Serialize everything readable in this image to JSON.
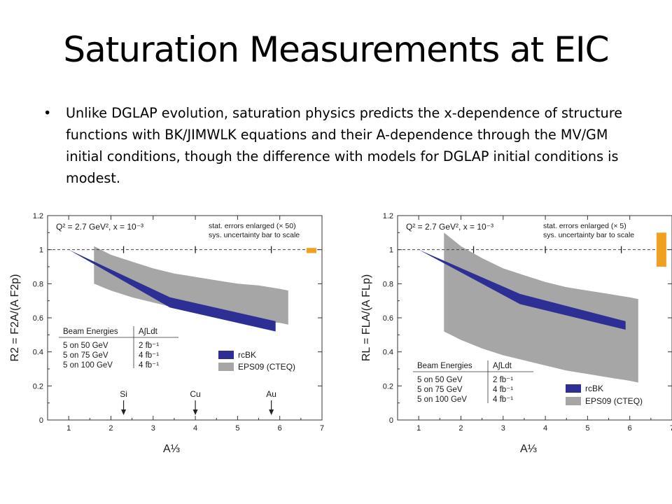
{
  "slide": {
    "title": "Saturation Measurements at EIC",
    "bullet": "Unlike DGLAP evolution, saturation physics predicts the x-dependence of structure functions with BK/JIMWLK equations and their A-dependence through the MV/GM initial conditions, though the difference with models for DGLAP initial conditions is modest."
  },
  "colors": {
    "rcBK": "#2e2f95",
    "eps09": "#a6a6a6",
    "sys_bar": "#f0a020"
  },
  "chart_data": [
    {
      "type": "area",
      "ylabel": "R2 = F2A/(A F2p)",
      "xlabel": "A⅓",
      "xlim": [
        0.5,
        7
      ],
      "ylim": [
        0,
        1.2
      ],
      "x_ticks": [
        "1",
        "2",
        "3",
        "4",
        "5",
        "6",
        "7"
      ],
      "y_ticks": [
        "0",
        "0.2",
        "0.4",
        "0.6",
        "0.8",
        "1",
        "1.2"
      ],
      "kinematics": "Q² = 2.7 GeV², x = 10⁻³",
      "note_1": "stat. errors enlarged (× 50)",
      "note_2": "sys. uncertainty bar to scale",
      "reference_line_y": 1,
      "tick_markers_x": [
        2.3,
        4.0,
        5.8
      ],
      "series": [
        {
          "name": "EPS09 (CTEQ)",
          "kind": "band",
          "x": [
            1.6,
            2.0,
            2.5,
            3.0,
            3.5,
            4.0,
            4.5,
            5.0,
            5.5,
            6.0,
            6.2
          ],
          "upper": [
            1.02,
            0.97,
            0.93,
            0.89,
            0.86,
            0.84,
            0.82,
            0.8,
            0.79,
            0.77,
            0.76
          ],
          "lower": [
            0.8,
            0.76,
            0.72,
            0.69,
            0.66,
            0.63,
            0.61,
            0.59,
            0.58,
            0.57,
            0.56
          ]
        },
        {
          "name": "rcBK",
          "kind": "band",
          "x": [
            1.0,
            3.4,
            5.9
          ],
          "upper": [
            1.0,
            0.72,
            0.58
          ],
          "lower": [
            1.0,
            0.66,
            0.52
          ]
        }
      ],
      "sys_bar": {
        "x": 6.75,
        "low": 0.98,
        "high": 1.01
      },
      "element_markers": [
        {
          "label": "Si",
          "x": 2.3
        },
        {
          "label": "Cu",
          "x": 4.0
        },
        {
          "label": "Au",
          "x": 5.8
        }
      ],
      "luminosity_table": {
        "headers": [
          "Beam Energies",
          "A∫Ldt"
        ],
        "rows": [
          [
            "5 on 50 GeV",
            "2 fb⁻¹"
          ],
          [
            "5 on 75 GeV",
            "4 fb⁻¹"
          ],
          [
            "5 on 100 GeV",
            "4 fb⁻¹"
          ]
        ]
      }
    },
    {
      "type": "area",
      "ylabel": "RL = FLA/(A FLp)",
      "xlabel": "A⅓",
      "xlim": [
        0.5,
        7
      ],
      "ylim": [
        0,
        1.2
      ],
      "x_ticks": [
        "1",
        "2",
        "3",
        "4",
        "5",
        "6",
        "7"
      ],
      "y_ticks": [
        "0",
        "0.2",
        "0.4",
        "0.6",
        "0.8",
        "1",
        "1.2"
      ],
      "kinematics": "Q² = 2.7 GeV², x = 10⁻³",
      "note_1": "stat. errors enlarged (× 5)",
      "note_2": "sys. uncertainty bar to scale",
      "reference_line_y": 1,
      "tick_markers_x": [
        2.3,
        4.0,
        5.8
      ],
      "series": [
        {
          "name": "EPS09 (CTEQ)",
          "kind": "band",
          "x": [
            1.6,
            2.0,
            2.5,
            3.0,
            3.5,
            4.0,
            4.5,
            5.0,
            5.5,
            6.0,
            6.2
          ],
          "upper": [
            1.1,
            1.02,
            0.95,
            0.89,
            0.85,
            0.81,
            0.78,
            0.76,
            0.74,
            0.72,
            0.71
          ],
          "lower": [
            0.52,
            0.47,
            0.42,
            0.38,
            0.35,
            0.32,
            0.29,
            0.27,
            0.25,
            0.23,
            0.22
          ]
        },
        {
          "name": "rcBK",
          "kind": "band",
          "x": [
            1.0,
            3.4,
            5.9
          ],
          "upper": [
            1.0,
            0.74,
            0.58
          ],
          "lower": [
            1.0,
            0.68,
            0.53
          ]
        }
      ],
      "sys_bar": {
        "x": 6.75,
        "low": 0.9,
        "high": 1.1
      },
      "luminosity_table": {
        "headers": [
          "Beam Energies",
          "A∫Ldt"
        ],
        "rows": [
          [
            "5 on 50 GeV",
            "2 fb⁻¹"
          ],
          [
            "5 on 75 GeV",
            "4 fb⁻¹"
          ],
          [
            "5 on 100 GeV",
            "4 fb⁻¹"
          ]
        ]
      }
    }
  ]
}
